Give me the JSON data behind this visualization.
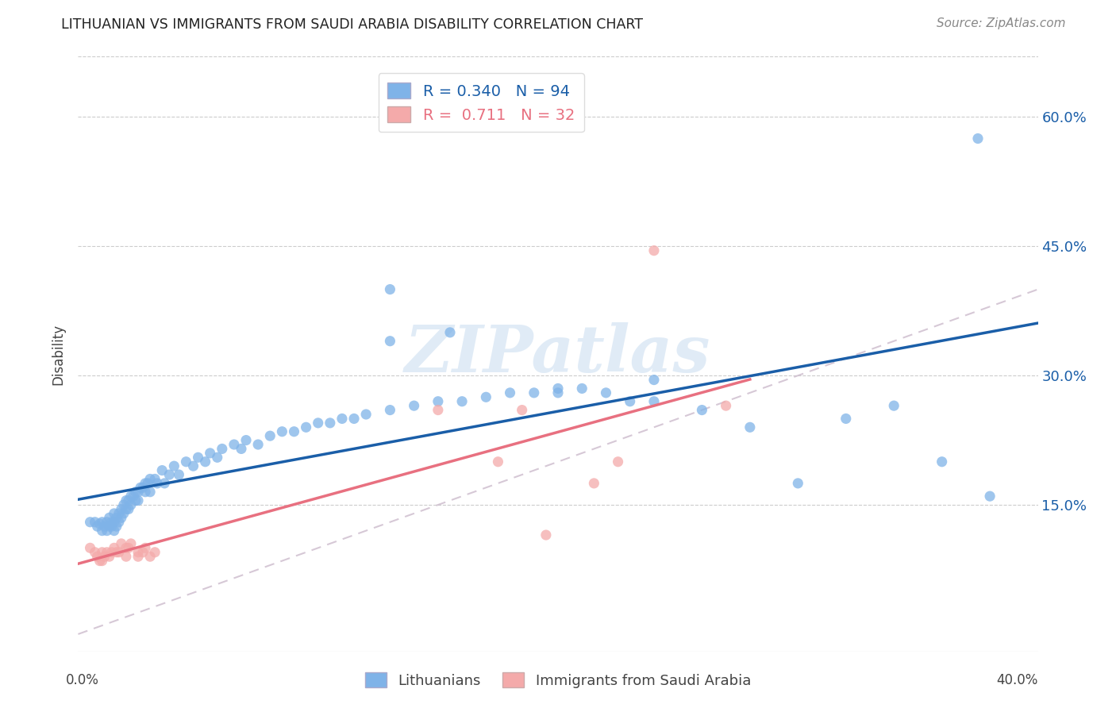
{
  "title": "LITHUANIAN VS IMMIGRANTS FROM SAUDI ARABIA DISABILITY CORRELATION CHART",
  "source": "Source: ZipAtlas.com",
  "ylabel": "Disability",
  "xlim": [
    0.0,
    0.4
  ],
  "ylim": [
    -0.02,
    0.67
  ],
  "blue_color": "#7FB3E8",
  "pink_color": "#F4AAAA",
  "blue_line_color": "#1A5EA8",
  "pink_line_color": "#E87080",
  "diag_line_color": "#CCBBCC",
  "watermark_text": "ZIPatlas",
  "legend_r_blue": "0.340",
  "legend_n_blue": "94",
  "legend_r_pink": "0.711",
  "legend_n_pink": "32",
  "right_ytick_labels": [
    "15.0%",
    "30.0%",
    "45.0%",
    "60.0%"
  ],
  "right_ytick_values": [
    0.15,
    0.3,
    0.45,
    0.6
  ],
  "blue_x": [
    0.005,
    0.007,
    0.008,
    0.009,
    0.01,
    0.01,
    0.011,
    0.012,
    0.012,
    0.013,
    0.013,
    0.014,
    0.014,
    0.015,
    0.015,
    0.015,
    0.016,
    0.016,
    0.017,
    0.017,
    0.018,
    0.018,
    0.019,
    0.019,
    0.02,
    0.02,
    0.021,
    0.021,
    0.022,
    0.022,
    0.023,
    0.024,
    0.024,
    0.025,
    0.025,
    0.026,
    0.027,
    0.028,
    0.028,
    0.029,
    0.03,
    0.03,
    0.032,
    0.033,
    0.035,
    0.036,
    0.038,
    0.04,
    0.042,
    0.045,
    0.048,
    0.05,
    0.053,
    0.055,
    0.058,
    0.06,
    0.065,
    0.068,
    0.07,
    0.075,
    0.08,
    0.085,
    0.09,
    0.095,
    0.1,
    0.105,
    0.11,
    0.115,
    0.12,
    0.13,
    0.14,
    0.15,
    0.16,
    0.17,
    0.18,
    0.19,
    0.2,
    0.21,
    0.22,
    0.23,
    0.24,
    0.26,
    0.28,
    0.3,
    0.32,
    0.34,
    0.36,
    0.38,
    0.2,
    0.13,
    0.13,
    0.155,
    0.24,
    0.375
  ],
  "blue_y": [
    0.13,
    0.13,
    0.125,
    0.128,
    0.13,
    0.12,
    0.125,
    0.13,
    0.12,
    0.125,
    0.135,
    0.125,
    0.13,
    0.14,
    0.13,
    0.12,
    0.135,
    0.125,
    0.14,
    0.13,
    0.145,
    0.135,
    0.15,
    0.14,
    0.155,
    0.145,
    0.155,
    0.145,
    0.16,
    0.15,
    0.16,
    0.165,
    0.155,
    0.165,
    0.155,
    0.17,
    0.17,
    0.175,
    0.165,
    0.175,
    0.18,
    0.165,
    0.18,
    0.175,
    0.19,
    0.175,
    0.185,
    0.195,
    0.185,
    0.2,
    0.195,
    0.205,
    0.2,
    0.21,
    0.205,
    0.215,
    0.22,
    0.215,
    0.225,
    0.22,
    0.23,
    0.235,
    0.235,
    0.24,
    0.245,
    0.245,
    0.25,
    0.25,
    0.255,
    0.26,
    0.265,
    0.27,
    0.27,
    0.275,
    0.28,
    0.28,
    0.285,
    0.285,
    0.28,
    0.27,
    0.27,
    0.26,
    0.24,
    0.175,
    0.25,
    0.265,
    0.2,
    0.16,
    0.28,
    0.34,
    0.4,
    0.35,
    0.295,
    0.575
  ],
  "pink_x": [
    0.005,
    0.007,
    0.008,
    0.009,
    0.01,
    0.01,
    0.011,
    0.012,
    0.013,
    0.014,
    0.015,
    0.016,
    0.017,
    0.018,
    0.02,
    0.02,
    0.021,
    0.022,
    0.025,
    0.025,
    0.027,
    0.028,
    0.03,
    0.032,
    0.15,
    0.175,
    0.185,
    0.195,
    0.215,
    0.225,
    0.24,
    0.27
  ],
  "pink_y": [
    0.1,
    0.095,
    0.09,
    0.085,
    0.095,
    0.085,
    0.09,
    0.095,
    0.09,
    0.095,
    0.1,
    0.095,
    0.095,
    0.105,
    0.1,
    0.09,
    0.1,
    0.105,
    0.095,
    0.09,
    0.095,
    0.1,
    0.09,
    0.095,
    0.26,
    0.2,
    0.26,
    0.115,
    0.175,
    0.2,
    0.445,
    0.265
  ]
}
